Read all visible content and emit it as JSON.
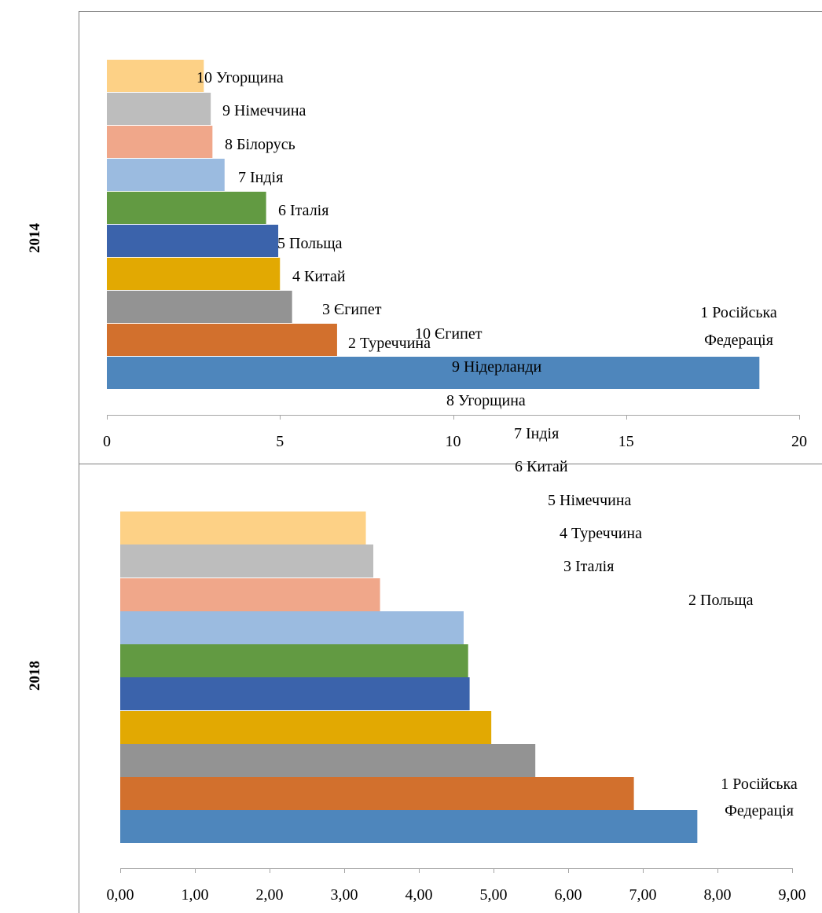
{
  "chart_data": [
    {
      "type": "bar",
      "orientation": "horizontal",
      "panel_label": "2014",
      "categories": [
        "1 Російська Федерація",
        "2 Туреччина",
        "3 Єгипет",
        "4 Китай",
        "5 Польща",
        "6 Італія",
        "7 Індія",
        "8 Білорусь",
        "9 Німеччина",
        "10 Угорщина"
      ],
      "values": [
        18.85,
        6.65,
        5.35,
        5.0,
        4.95,
        4.6,
        3.4,
        3.05,
        3.0,
        2.8
      ],
      "colors": [
        "#4E86BC",
        "#D2702D",
        "#939393",
        "#E2A902",
        "#3B63AB",
        "#629A42",
        "#9BBBE0",
        "#F0A78A",
        "#BDBDBD",
        "#FDD186"
      ],
      "xlim": [
        0,
        20
      ],
      "xticks": [
        0,
        5,
        10,
        15,
        20
      ],
      "xtick_labels": [
        "0",
        "5",
        "10",
        "15",
        "20"
      ],
      "grid": false,
      "legend": "none"
    },
    {
      "type": "bar",
      "orientation": "horizontal",
      "panel_label": "2018",
      "categories": [
        "1 Російська Федерація",
        "2 Польща",
        "3 Італія",
        "4 Туреччина",
        "5 Німеччина",
        "6 Китай",
        "7 Індія",
        "8 Угорщина",
        "9 Нідерланди",
        "10 Єгипет"
      ],
      "values": [
        7.73,
        6.88,
        5.56,
        4.97,
        4.68,
        4.66,
        4.6,
        3.48,
        3.39,
        3.29
      ],
      "colors": [
        "#4E86BC",
        "#D2702D",
        "#939393",
        "#E2A902",
        "#3B63AB",
        "#629A42",
        "#9BBBE0",
        "#F0A78A",
        "#BDBDBD",
        "#FDD186"
      ],
      "xlim": [
        0,
        9
      ],
      "xticks": [
        0,
        1,
        2,
        3,
        4,
        5,
        6,
        7,
        8,
        9
      ],
      "xtick_labels": [
        "0,00",
        "1,00",
        "2,00",
        "3,00",
        "4,00",
        "5,00",
        "6,00",
        "7,00",
        "8,00",
        "9,00"
      ],
      "grid": false,
      "legend": "none"
    }
  ]
}
